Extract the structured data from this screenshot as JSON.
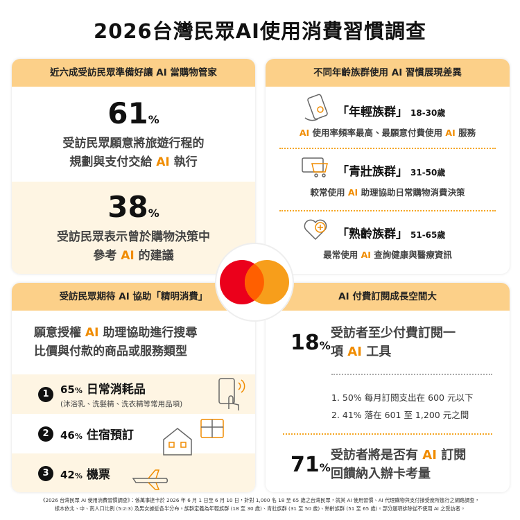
{
  "title": "2026台灣民眾AI使用消費習慣調查",
  "panels": [
    {
      "header": "近六成受訪民眾準備好讓 AI 當購物管家",
      "stats": [
        {
          "value": "61",
          "unit": "%",
          "lines": [
            [
              "受訪民眾願意將旅遊行程的"
            ],
            [
              "規劃與支付交給 ",
              {
                "accent": "AI"
              },
              " 執行"
            ]
          ]
        },
        {
          "value": "38",
          "unit": "%",
          "lines": [
            [
              "受訪民眾表示曾於購物決策中"
            ],
            [
              "參考 ",
              {
                "accent": "AI"
              },
              " 的建議"
            ]
          ]
        }
      ]
    },
    {
      "header": "不同年齡族群使用 AI 習慣展現差異",
      "groups": [
        {
          "name": "「年輕族群」",
          "age": "18-30歲",
          "desc": [
            {
              "accent": "AI"
            },
            " 使用率頻率最高、最願意付費使用 ",
            {
              "accent": "AI"
            },
            " 服務"
          ]
        },
        {
          "name": "「青壯族群」",
          "age": "31-50歲",
          "desc": [
            "較常使用 ",
            {
              "accent": "AI"
            },
            " 助理協助日常購物消費決策"
          ]
        },
        {
          "name": "「熟齡族群」",
          "age": "51-65歲",
          "desc": [
            "最常使用 ",
            {
              "accent": "AI"
            },
            " 查詢健康與醫療資訊"
          ]
        }
      ]
    },
    {
      "header": "受訪民眾期待 AI 協助「精明消費」",
      "intro": [
        [
          "願意授權 ",
          {
            "accent": "AI"
          },
          " 助理協助進行搜尋"
        ],
        [
          "比價與付款的商品或服務類型"
        ]
      ],
      "items": [
        {
          "rank": "1",
          "value": "65",
          "unit": "%",
          "label": "日常消耗品",
          "note": "(沐浴乳、洗髮精、洗衣精等常用品項)"
        },
        {
          "rank": "2",
          "value": "46",
          "unit": "%",
          "label": "住宿預訂"
        },
        {
          "rank": "3",
          "value": "42",
          "unit": "%",
          "label": "機票"
        }
      ]
    },
    {
      "header": "AI 付費訂閱成長空間大",
      "stats": [
        {
          "value": "18",
          "unit": "%",
          "lines": [
            [
              "受訪者至少付費訂閱一"
            ],
            [
              "項 ",
              {
                "accent": "AI"
              },
              " 工具"
            ]
          ]
        },
        {
          "value": "71",
          "unit": "%",
          "lines": [
            [
              "受訪者將是否有 ",
              {
                "accent": "AI"
              },
              " 訂閱"
            ],
            [
              "回饋納入辦卡考量"
            ]
          ]
        }
      ],
      "details": [
        "1. 50% 每月訂閱支出在 600 元以下",
        "2. 41% 落在 601 至 1,200 元之間"
      ]
    }
  ],
  "footnote": [
    "《2026 台灣民眾 AI 使用消費習慣調查》：係萬事達卡於 2026 年 6 月 1 日至 6 月 10 日，針對 1,000 名 18 至 65 歲之台灣民眾，就其 AI 使用習慣、AI 代理購物與支付接受度所進行之網路調查，",
    "樣本依北、中、南人口比例 (5:2:3) 及男女據近各半分布。族群定義為年輕族群 (18 至 30 歲)、青壯族群 (31 至 50 歲)、熟齡族群 (51 至 65 歲)。部分題項排除從不使用 AI 之受訪者。"
  ]
}
